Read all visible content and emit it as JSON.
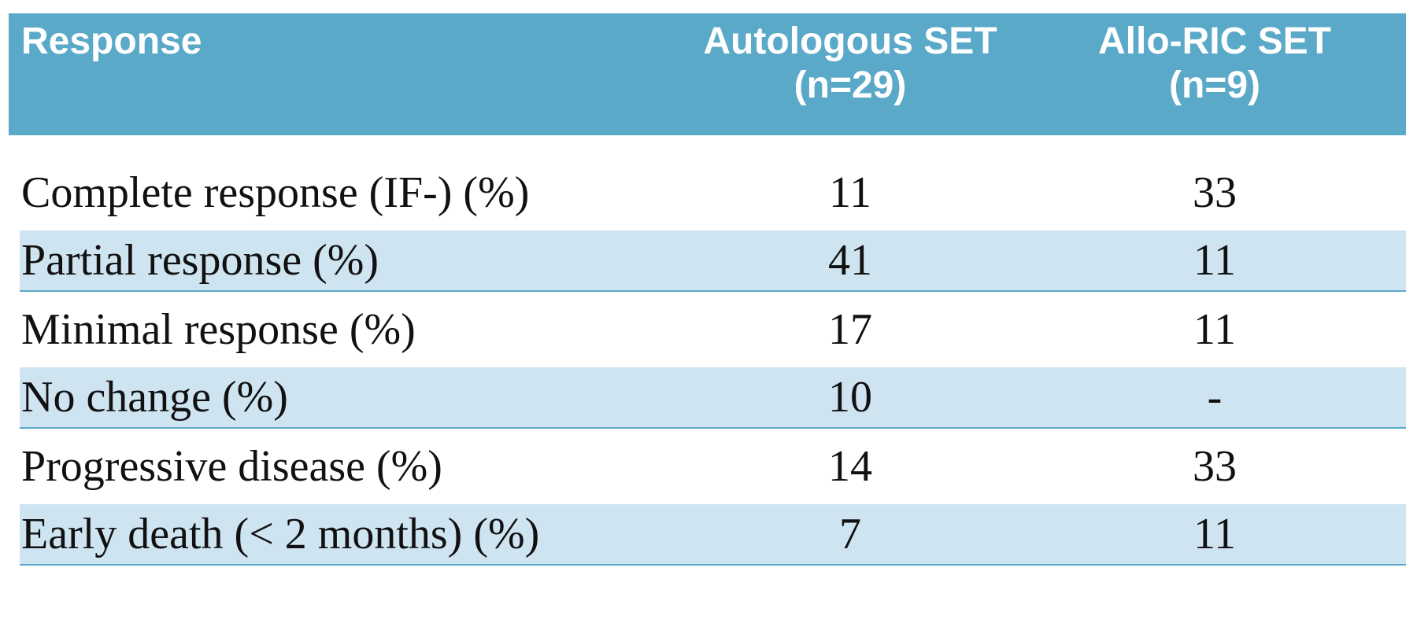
{
  "table": {
    "header": [
      [
        "Response"
      ],
      [
        "Autologous SET",
        "(n=29)"
      ],
      [
        "Allo-RIC SET",
        "(n=9)"
      ]
    ],
    "rows": [
      [
        "Complete response (IF-) (%)",
        "11",
        "33"
      ],
      [
        "Partial response (%)",
        "41",
        "11"
      ],
      [
        "Minimal response (%)",
        "17",
        "11"
      ],
      [
        "No change (%)",
        "10",
        "-"
      ],
      [
        "Progressive disease (%)",
        "14",
        "33"
      ],
      [
        "Early death (< 2 months) (%)",
        "7",
        "11"
      ]
    ]
  }
}
